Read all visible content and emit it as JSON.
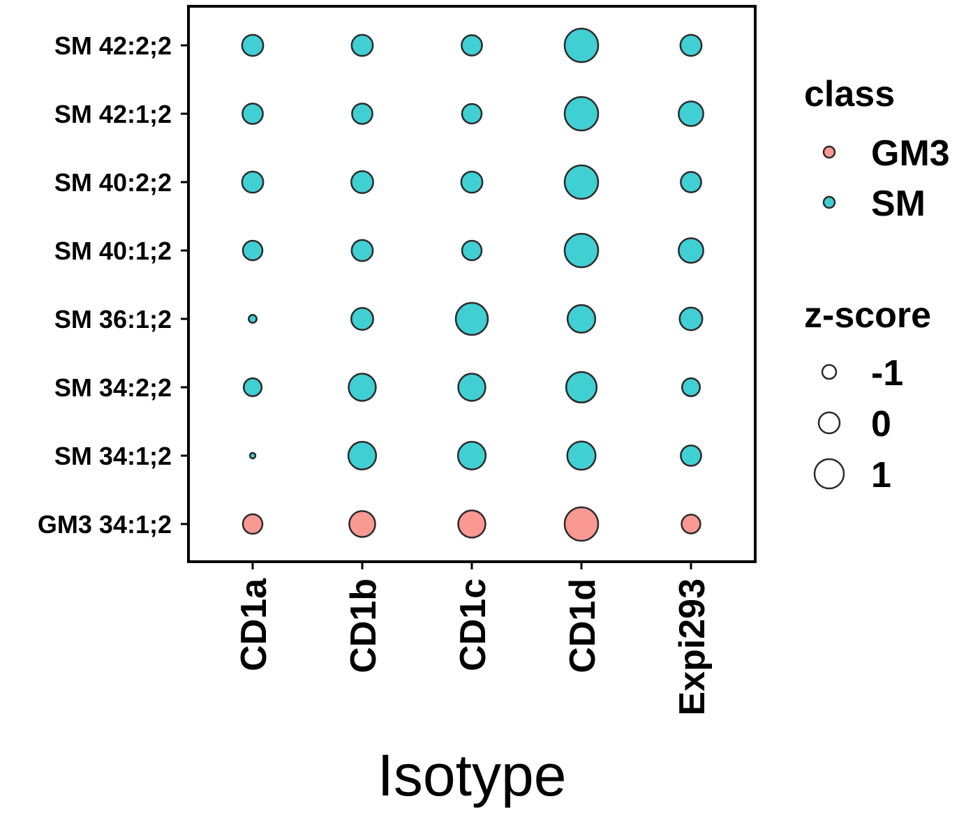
{
  "chart_data": {
    "type": "scatter",
    "subtype": "dot-plot",
    "xlabel": "Isotype",
    "ylabel": "",
    "categories": [
      "CD1a",
      "CD1b",
      "CD1c",
      "CD1d",
      "Expi293"
    ],
    "rows": [
      "SM 42:2;2",
      "SM 42:1;2",
      "SM 40:2;2",
      "SM 40:1;2",
      "SM 36:1;2",
      "SM 34:2;2",
      "SM 34:1;2",
      "GM3 34:1;2"
    ],
    "row_class": [
      "SM",
      "SM",
      "SM",
      "SM",
      "SM",
      "SM",
      "SM",
      "GM3"
    ],
    "zscores": [
      [
        -0.5,
        -0.5,
        -0.6,
        1.6,
        -0.5
      ],
      [
        -0.6,
        -0.6,
        -0.7,
        1.6,
        0.0
      ],
      [
        -0.5,
        -0.4,
        -0.5,
        1.6,
        -0.6
      ],
      [
        -0.7,
        -0.5,
        -0.7,
        1.6,
        0.0
      ],
      [
        -1.7,
        -0.4,
        1.3,
        0.5,
        -0.3
      ],
      [
        -0.9,
        0.4,
        0.4,
        1.0,
        -0.9
      ],
      [
        -1.8,
        0.5,
        0.5,
        0.6,
        -0.6
      ],
      [
        -0.7,
        0.2,
        0.4,
        1.6,
        -0.8
      ]
    ],
    "legend": {
      "placement": "right",
      "class": {
        "title": "class",
        "items": [
          {
            "label": "GM3",
            "color": "#F8766D"
          },
          {
            "label": "SM",
            "color": "#00BFC4"
          }
        ]
      },
      "size": {
        "title": "z-score",
        "items": [
          {
            "label": "-1",
            "value": -1
          },
          {
            "label": "0",
            "value": 0
          },
          {
            "label": "1",
            "value": 1
          }
        ]
      }
    },
    "colors": {
      "GM3": "#F8766D",
      "SM": "#00BFC4"
    },
    "grid": false
  }
}
